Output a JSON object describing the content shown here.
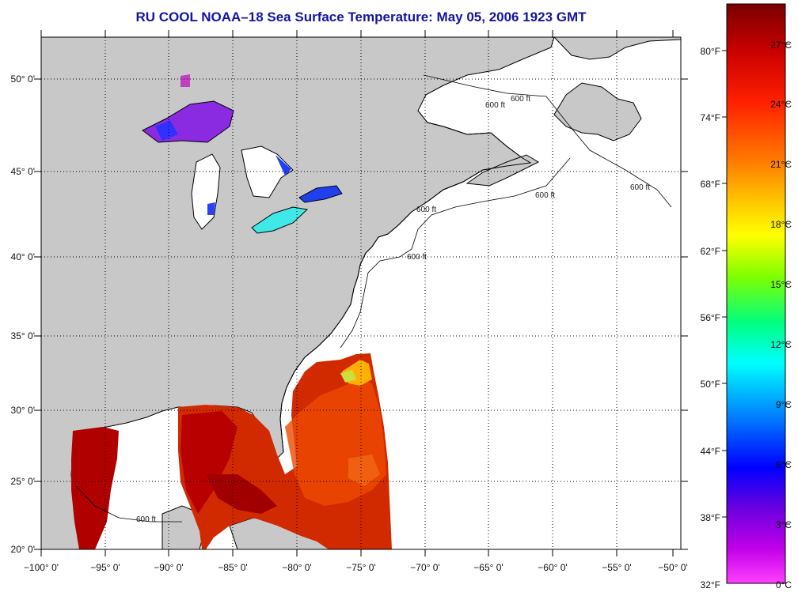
{
  "title": "RU COOL  NOAA–18  Sea Surface Temperature:  May 05, 2006 1923 GMT",
  "map": {
    "lon_labels": [
      "−100° 0'",
      "−95° 0'",
      "−90° 0'",
      "−85° 0'",
      "−80° 0'",
      "−75° 0'",
      "−70° 0'",
      "−65° 0'",
      "−60° 0'",
      "−55° 0'",
      "−50° 0'"
    ],
    "lat_labels": [
      "20° 0'",
      "25° 0'",
      "30° 0'",
      "35° 0'",
      "40° 0'",
      "45° 0'",
      "50° 0'"
    ],
    "depth_contour_labels": [
      "600 ft",
      "600 ft",
      "600 ft",
      "600 ft",
      "600 ft",
      "600 ft",
      "600 ft"
    ],
    "colors": {
      "land": "#c8c8c8",
      "ocean_nodata": "#ffffff",
      "coast": "#000000",
      "grid": "#000000"
    }
  },
  "colorbar": {
    "fahrenheit_labels": [
      "80°F",
      "74°F",
      "68°F",
      "62°F",
      "56°F",
      "50°F",
      "44°F",
      "38°F",
      "32°F"
    ],
    "celsius_labels": [
      "27°C",
      "24°C",
      "21°C",
      "18°C",
      "15°C",
      "12°C",
      "9°C",
      "6°C",
      "3°C",
      "0°C"
    ],
    "palette_top_to_bottom": [
      "#7a0000",
      "#c80000",
      "#ff2000",
      "#ff7a00",
      "#ffd000",
      "#ffff00",
      "#80ff00",
      "#00ff80",
      "#00ffff",
      "#0090ff",
      "#0000ff",
      "#8000ff",
      "#ff00ff"
    ]
  }
}
